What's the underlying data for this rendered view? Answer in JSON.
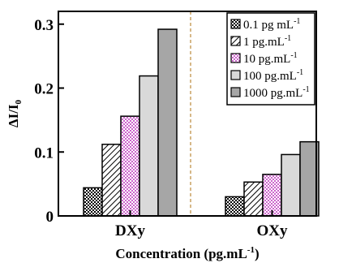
{
  "chart_data": {
    "type": "bar",
    "categories": [
      "DXy",
      "OXy"
    ],
    "series": [
      {
        "name": "0.1 pg mL",
        "unit_sup": "-1",
        "values": [
          0.044,
          0.03
        ],
        "pattern": "dots"
      },
      {
        "name": "1 pg.mL",
        "unit_sup": "-1",
        "values": [
          0.112,
          0.053
        ],
        "pattern": "hatch"
      },
      {
        "name": "10 pg.mL",
        "unit_sup": "-1",
        "values": [
          0.156,
          0.065
        ],
        "pattern": "pink-dots"
      },
      {
        "name": "100 pg.mL",
        "unit_sup": "-1",
        "values": [
          0.219,
          0.096
        ],
        "pattern": "light-gray"
      },
      {
        "name": "1000 pg.mL",
        "unit_sup": "-1",
        "values": [
          0.292,
          0.116
        ],
        "pattern": "gray"
      }
    ],
    "ylabel": "ΔI/I",
    "ylabel_sub": "0",
    "xlabel": "Concentration (pg.mL",
    "xlabel_sup": "-1",
    "xlabel_close": ")",
    "ylim": [
      0,
      0.32
    ],
    "yticks": [
      0,
      0.1,
      0.2,
      0.3
    ],
    "ytick_labels": [
      "0",
      "0.1",
      "0.2",
      "0.3"
    ],
    "legend_position": "top-right",
    "separator_style": "dashed",
    "colors": {
      "separator": "#c8a060",
      "light_gray": "#d9d9d9",
      "gray": "#a6a6a6",
      "pink": "#cc66cc"
    }
  }
}
